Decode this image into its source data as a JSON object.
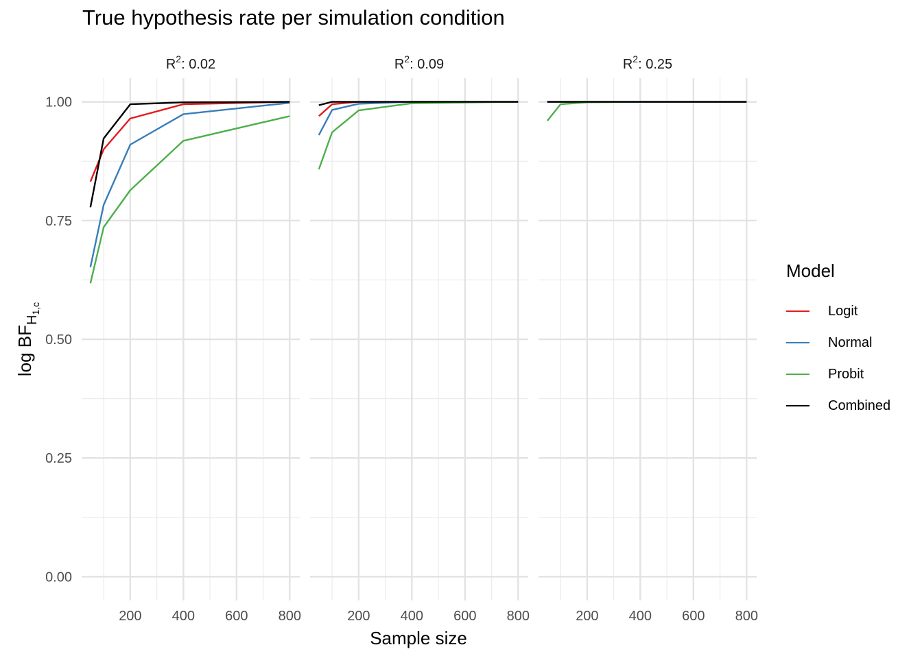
{
  "chart_data": {
    "type": "line",
    "title": "True hypothesis rate per simulation condition",
    "xlabel": "Sample size",
    "ylabel_main": "log BF",
    "ylabel_subscript": "H",
    "ylabel_subsubscript": "1,c",
    "x": [
      50,
      100,
      200,
      400,
      800
    ],
    "xticks": [
      200,
      400,
      600,
      800
    ],
    "xtick_labels": [
      "200",
      "400",
      "600",
      "800"
    ],
    "xlim": [
      17,
      838
    ],
    "yticks": [
      0,
      0.25,
      0.5,
      0.75,
      1.0
    ],
    "ytick_labels": [
      "0.00",
      "0.25",
      "0.50",
      "0.75",
      "1.00"
    ],
    "ylim": [
      -0.05,
      1.05
    ],
    "grid": true,
    "legend": {
      "title": "Model",
      "position": "right",
      "items": [
        {
          "label": "Logit",
          "color": "#e41a1c"
        },
        {
          "label": "Normal",
          "color": "#377eb8"
        },
        {
          "label": "Probit",
          "color": "#4daf4a"
        },
        {
          "label": "Combined",
          "color": "#000000"
        }
      ]
    },
    "panels": [
      {
        "strip_main": "R",
        "strip_sup": "2",
        "strip_value": ": 0.02",
        "series": [
          {
            "name": "Logit",
            "color": "#e41a1c",
            "values": [
              0.832,
              0.9,
              0.965,
              0.995,
              1.0
            ]
          },
          {
            "name": "Normal",
            "color": "#377eb8",
            "values": [
              0.652,
              0.783,
              0.91,
              0.974,
              0.998
            ]
          },
          {
            "name": "Probit",
            "color": "#4daf4a",
            "values": [
              0.618,
              0.736,
              0.814,
              0.918,
              0.97
            ]
          },
          {
            "name": "Combined",
            "color": "#000000",
            "values": [
              0.778,
              0.923,
              0.995,
              0.999,
              1.0
            ]
          }
        ]
      },
      {
        "strip_main": "R",
        "strip_sup": "2",
        "strip_value": ": 0.09",
        "series": [
          {
            "name": "Logit",
            "color": "#e41a1c",
            "values": [
              0.97,
              0.995,
              1.0,
              1.0,
              1.0
            ]
          },
          {
            "name": "Normal",
            "color": "#377eb8",
            "values": [
              0.93,
              0.983,
              0.996,
              1.0,
              1.0
            ]
          },
          {
            "name": "Probit",
            "color": "#4daf4a",
            "values": [
              0.858,
              0.936,
              0.982,
              0.997,
              1.0
            ]
          },
          {
            "name": "Combined",
            "color": "#000000",
            "values": [
              0.993,
              1.0,
              1.0,
              1.0,
              1.0
            ]
          }
        ]
      },
      {
        "strip_main": "R",
        "strip_sup": "2",
        "strip_value": ": 0.25",
        "series": [
          {
            "name": "Logit",
            "color": "#e41a1c",
            "values": [
              1.0,
              1.0,
              1.0,
              1.0,
              1.0
            ]
          },
          {
            "name": "Normal",
            "color": "#377eb8",
            "values": [
              1.0,
              1.0,
              1.0,
              1.0,
              1.0
            ]
          },
          {
            "name": "Probit",
            "color": "#4daf4a",
            "values": [
              0.96,
              0.995,
              0.999,
              1.0,
              1.0
            ]
          },
          {
            "name": "Combined",
            "color": "#000000",
            "values": [
              1.0,
              1.0,
              1.0,
              1.0,
              1.0
            ]
          }
        ]
      }
    ]
  }
}
